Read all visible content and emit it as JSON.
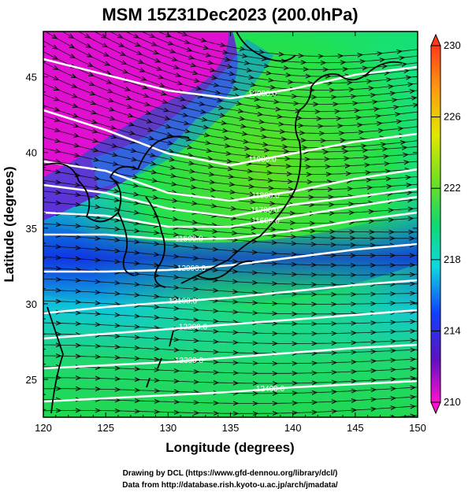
{
  "title": "MSM 15Z31Dec2023 (200.0hPa)",
  "xlabel": "Longitude (degrees)",
  "ylabel": "Latitude  (degrees)",
  "credits": [
    "Drawing by DCL (https://www.gfd-dennou.org/library/dcl/)",
    "Data from http://database.rish.kyoto-u.ac.jp/arch/jmadata/"
  ],
  "x_ticks": [
    "120",
    "125",
    "130",
    "135",
    "140",
    "145",
    "150"
  ],
  "y_ticks": [
    "25",
    "30",
    "35",
    "40",
    "45"
  ],
  "colorbar": {
    "ticks": [
      "230",
      "226",
      "222",
      "218",
      "214",
      "210"
    ],
    "min": 210,
    "max": 230
  },
  "chart_data": {
    "type": "heatmap",
    "title": "MSM 15Z31Dec2023 (200.0hPa)",
    "xlabel": "Longitude (degrees)",
    "ylabel": "Latitude  (degrees)",
    "xlim": [
      120,
      150
    ],
    "ylim": [
      22.5,
      48
    ],
    "shading": "temperature (K)",
    "vectors": "wind direction arrows (westerly flow)",
    "contour_labels": [
      {
        "label": "12000.0"
      },
      {
        "label": "11900.0"
      },
      {
        "label": "11800.0"
      },
      {
        "label": "11700.0"
      },
      {
        "label": "11600.0"
      },
      {
        "label": "11500.0"
      },
      {
        "label": "12000.0"
      },
      {
        "label": "12100.0"
      },
      {
        "label": "12200.0"
      },
      {
        "label": "12300.0"
      },
      {
        "label": "12400.0"
      }
    ]
  }
}
